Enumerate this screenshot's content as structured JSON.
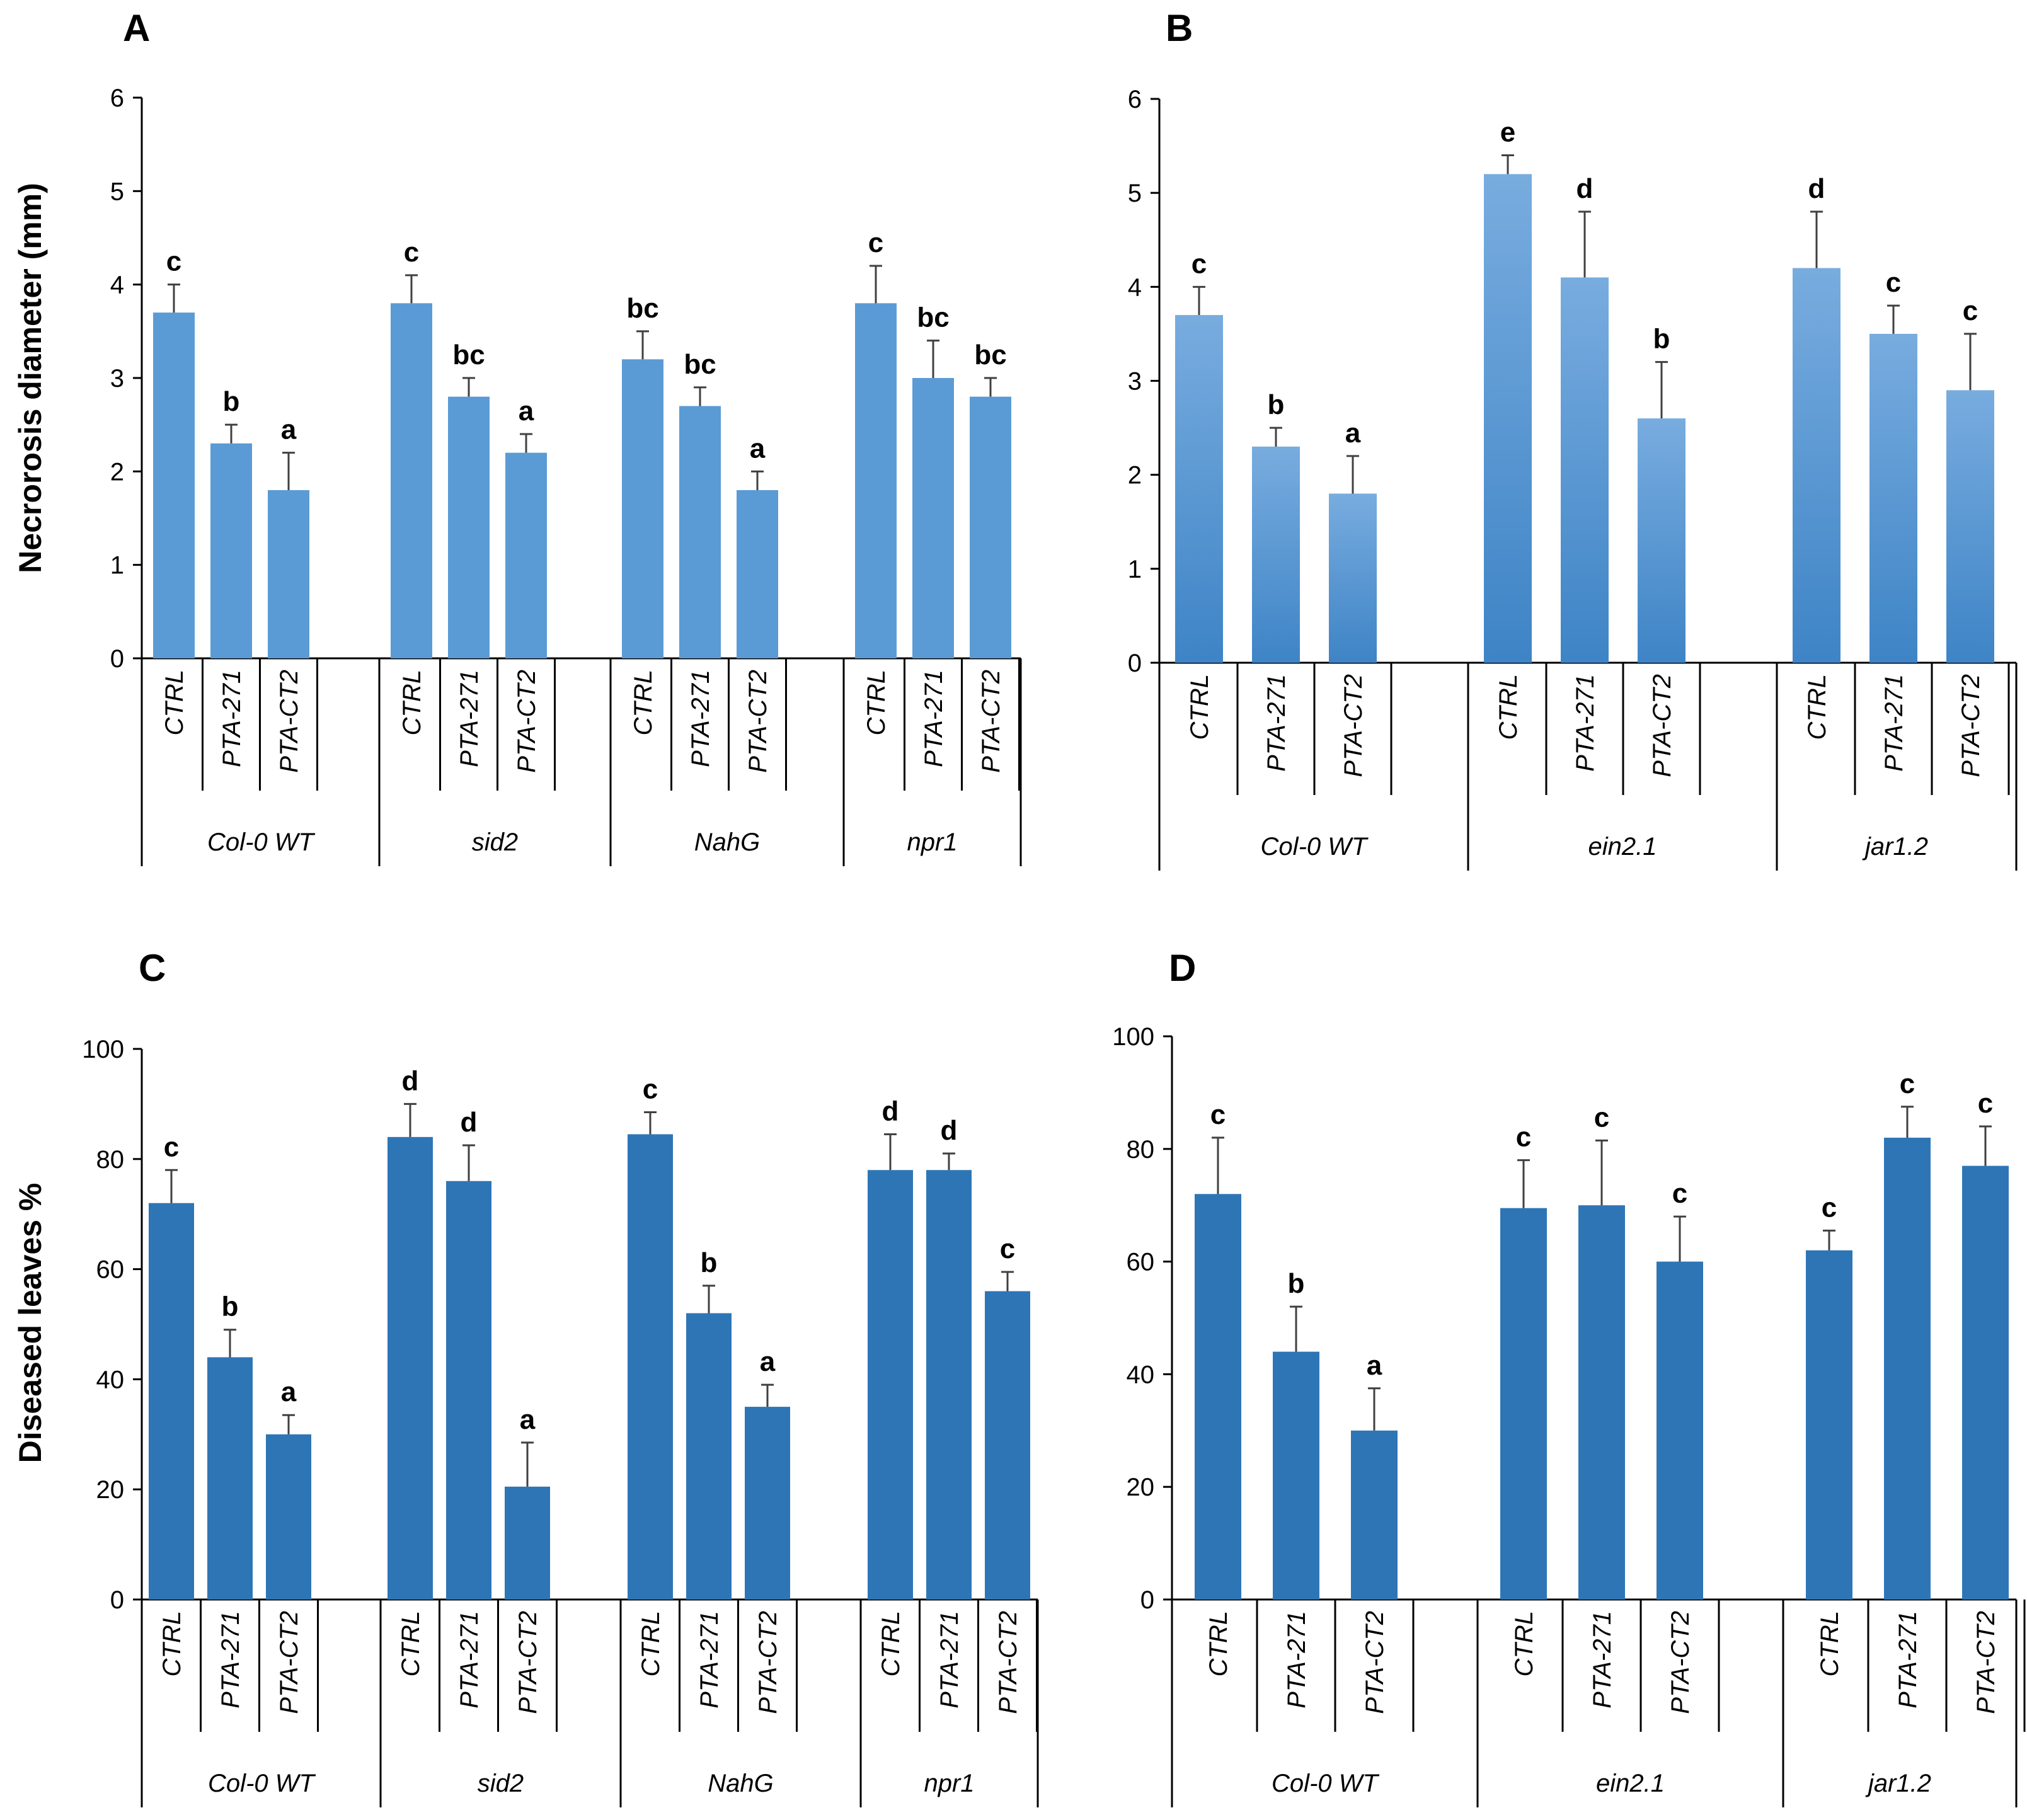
{
  "colors": {
    "bar_light": "#5b9bd5",
    "bar_grad_top": "#78acdf",
    "bar_grad_bottom": "#3e84c6",
    "bar_dark": "#2e75b6",
    "error": "#404040",
    "axis": "#000000"
  },
  "chart_data": [
    {
      "panel": "A",
      "type": "bar",
      "ylabel": "Necrorosis diameter (mm)",
      "ylim": [
        0,
        6
      ],
      "yticks": [
        "0",
        "1",
        "2",
        "3",
        "4",
        "5",
        "6"
      ],
      "groups": [
        {
          "name": "Col-0 WT",
          "bars": [
            {
              "label": "CTRL",
              "value": 3.7,
              "error": 0.3,
              "sig": "c"
            },
            {
              "label": "PTA-271",
              "value": 2.3,
              "error": 0.2,
              "sig": "b"
            },
            {
              "label": "PTA-CT2",
              "value": 1.8,
              "error": 0.4,
              "sig": "a"
            }
          ]
        },
        {
          "name": "sid2",
          "bars": [
            {
              "label": "CTRL",
              "value": 3.8,
              "error": 0.3,
              "sig": "c"
            },
            {
              "label": "PTA-271",
              "value": 2.8,
              "error": 0.2,
              "sig": "bc"
            },
            {
              "label": "PTA-CT2",
              "value": 2.2,
              "error": 0.2,
              "sig": "a"
            }
          ]
        },
        {
          "name": "NahG",
          "bars": [
            {
              "label": "CTRL",
              "value": 3.2,
              "error": 0.3,
              "sig": "bc"
            },
            {
              "label": "PTA-271",
              "value": 2.7,
              "error": 0.2,
              "sig": "bc"
            },
            {
              "label": "PTA-CT2",
              "value": 1.8,
              "error": 0.2,
              "sig": "a"
            }
          ]
        },
        {
          "name": "npr1",
          "bars": [
            {
              "label": "CTRL",
              "value": 3.8,
              "error": 0.4,
              "sig": "c"
            },
            {
              "label": "PTA-271",
              "value": 3.0,
              "error": 0.4,
              "sig": "bc"
            },
            {
              "label": "PTA-CT2",
              "value": 2.8,
              "error": 0.2,
              "sig": "bc"
            }
          ]
        }
      ]
    },
    {
      "panel": "B",
      "type": "bar",
      "ylabel": "",
      "ylim": [
        0,
        6
      ],
      "yticks": [
        "0",
        "1",
        "2",
        "3",
        "4",
        "5",
        "6"
      ],
      "groups": [
        {
          "name": "Col-0 WT",
          "bars": [
            {
              "label": "CTRL",
              "value": 3.7,
              "error": 0.3,
              "sig": "c"
            },
            {
              "label": "PTA-271",
              "value": 2.3,
              "error": 0.2,
              "sig": "b"
            },
            {
              "label": "PTA-CT2",
              "value": 1.8,
              "error": 0.4,
              "sig": "a"
            }
          ]
        },
        {
          "name": "ein2.1",
          "bars": [
            {
              "label": "CTRL",
              "value": 5.2,
              "error": 0.2,
              "sig": "e"
            },
            {
              "label": "PTA-271",
              "value": 4.1,
              "error": 0.7,
              "sig": "d"
            },
            {
              "label": "PTA-CT2",
              "value": 2.6,
              "error": 0.6,
              "sig": "b"
            }
          ]
        },
        {
          "name": "jar1.2",
          "bars": [
            {
              "label": "CTRL",
              "value": 4.2,
              "error": 0.6,
              "sig": "d"
            },
            {
              "label": "PTA-271",
              "value": 3.5,
              "error": 0.3,
              "sig": "c"
            },
            {
              "label": "PTA-CT2",
              "value": 2.9,
              "error": 0.6,
              "sig": "c"
            }
          ]
        }
      ]
    },
    {
      "panel": "C",
      "type": "bar",
      "ylabel": "Diseased leaves %",
      "ylim": [
        0,
        100
      ],
      "yticks": [
        "0",
        "20",
        "40",
        "60",
        "80",
        "100"
      ],
      "groups": [
        {
          "name": "Col-0 WT",
          "bars": [
            {
              "label": "CTRL",
              "value": 72,
              "error": 6,
              "sig": "c"
            },
            {
              "label": "PTA-271",
              "value": 44,
              "error": 5,
              "sig": "b"
            },
            {
              "label": "PTA-CT2",
              "value": 30,
              "error": 3.5,
              "sig": "a"
            }
          ]
        },
        {
          "name": "sid2",
          "bars": [
            {
              "label": "CTRL",
              "value": 84,
              "error": 6,
              "sig": "d"
            },
            {
              "label": "PTA-271",
              "value": 76,
              "error": 6.5,
              "sig": "d"
            },
            {
              "label": "PTA-CT2",
              "value": 20.5,
              "error": 8,
              "sig": "a"
            }
          ]
        },
        {
          "name": "NahG",
          "bars": [
            {
              "label": "CTRL",
              "value": 84.5,
              "error": 4,
              "sig": "c"
            },
            {
              "label": "PTA-271",
              "value": 52,
              "error": 5,
              "sig": "b"
            },
            {
              "label": "PTA-CT2",
              "value": 35,
              "error": 4,
              "sig": "a"
            }
          ]
        },
        {
          "name": "npr1",
          "bars": [
            {
              "label": "CTRL",
              "value": 78,
              "error": 6.5,
              "sig": "d"
            },
            {
              "label": "PTA-271",
              "value": 78,
              "error": 3,
              "sig": "d"
            },
            {
              "label": "PTA-CT2",
              "value": 56,
              "error": 3.5,
              "sig": "c"
            }
          ]
        }
      ]
    },
    {
      "panel": "D",
      "type": "bar",
      "ylabel": "",
      "ylim": [
        0,
        100
      ],
      "yticks": [
        "0",
        "20",
        "40",
        "60",
        "80",
        "100"
      ],
      "groups": [
        {
          "name": "Col-0 WT",
          "bars": [
            {
              "label": "CTRL",
              "value": 72,
              "error": 10,
              "sig": "c"
            },
            {
              "label": "PTA-271",
              "value": 44,
              "error": 8,
              "sig": "b"
            },
            {
              "label": "PTA-CT2",
              "value": 30,
              "error": 7.5,
              "sig": "a"
            }
          ]
        },
        {
          "name": "ein2.1",
          "bars": [
            {
              "label": "CTRL",
              "value": 69.5,
              "error": 8.5,
              "sig": "c"
            },
            {
              "label": "PTA-271",
              "value": 70,
              "error": 11.5,
              "sig": "c"
            },
            {
              "label": "PTA-CT2",
              "value": 60,
              "error": 8,
              "sig": "c"
            }
          ]
        },
        {
          "name": "jar1.2",
          "bars": [
            {
              "label": "CTRL",
              "value": 62,
              "error": 3.5,
              "sig": "c"
            },
            {
              "label": "PTA-271",
              "value": 82,
              "error": 5.5,
              "sig": "c"
            },
            {
              "label": "PTA-CT2",
              "value": 77,
              "error": 7,
              "sig": "c"
            }
          ]
        }
      ]
    }
  ]
}
